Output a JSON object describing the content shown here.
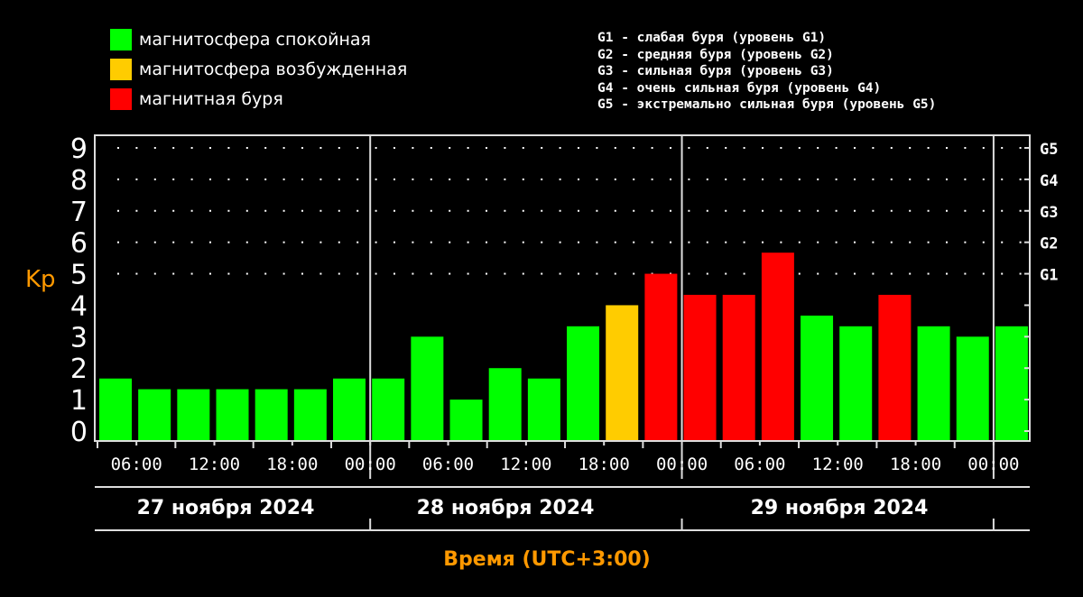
{
  "legend": [
    {
      "label": "магнитосфера спокойная",
      "color": "#00ff00"
    },
    {
      "label": "магнитосфера возбужденная",
      "color": "#ffcc00"
    },
    {
      "label": "магнитная буря",
      "color": "#ff0000"
    }
  ],
  "storm_levels": [
    "G1 - слабая буря (уровень G1)",
    "G2 - средняя буря (уровень G2)",
    "G3 - сильная буря (уровень G3)",
    "G4 - очень сильная буря (уровень G4)",
    "G5 - экстремально сильная буря (уровень G5)"
  ],
  "chart_data": {
    "type": "bar",
    "ylabel": "Kp",
    "xlabel": "Время (UTC+3:00)",
    "ylim": [
      0,
      9
    ],
    "yticks": [
      "0",
      "1",
      "2",
      "3",
      "4",
      "5",
      "6",
      "7",
      "8",
      "9"
    ],
    "right_ticks": [
      {
        "value": 5,
        "label": "G1"
      },
      {
        "value": 6,
        "label": "G2"
      },
      {
        "value": 7,
        "label": "G3"
      },
      {
        "value": 8,
        "label": "G4"
      },
      {
        "value": 9,
        "label": "G5"
      }
    ],
    "xtick_labels": [
      "06:00",
      "12:00",
      "18:00",
      "00:00",
      "06:00",
      "12:00",
      "18:00",
      "00:00",
      "06:00",
      "12:00",
      "18:00",
      "00:00"
    ],
    "days": [
      "27 ноября 2024",
      "28 ноября 2024",
      "29 ноября 2024"
    ],
    "values": [
      1.67,
      1.33,
      1.33,
      1.33,
      1.33,
      1.33,
      1.67,
      1.67,
      3.0,
      1.0,
      2.0,
      1.67,
      3.33,
      4.0,
      5.0,
      4.33,
      4.33,
      5.67,
      3.67,
      3.33,
      4.33,
      3.33,
      3.0,
      3.33
    ],
    "levels": [
      "quiet",
      "quiet",
      "quiet",
      "quiet",
      "quiet",
      "quiet",
      "quiet",
      "quiet",
      "quiet",
      "quiet",
      "quiet",
      "quiet",
      "quiet",
      "excited",
      "storm",
      "storm",
      "storm",
      "storm",
      "quiet",
      "quiet",
      "storm",
      "quiet",
      "quiet",
      "quiet"
    ],
    "colors": {
      "quiet": "#00ff00",
      "excited": "#ffcc00",
      "storm": "#ff0000",
      "axis_label": "#ff9900"
    }
  }
}
